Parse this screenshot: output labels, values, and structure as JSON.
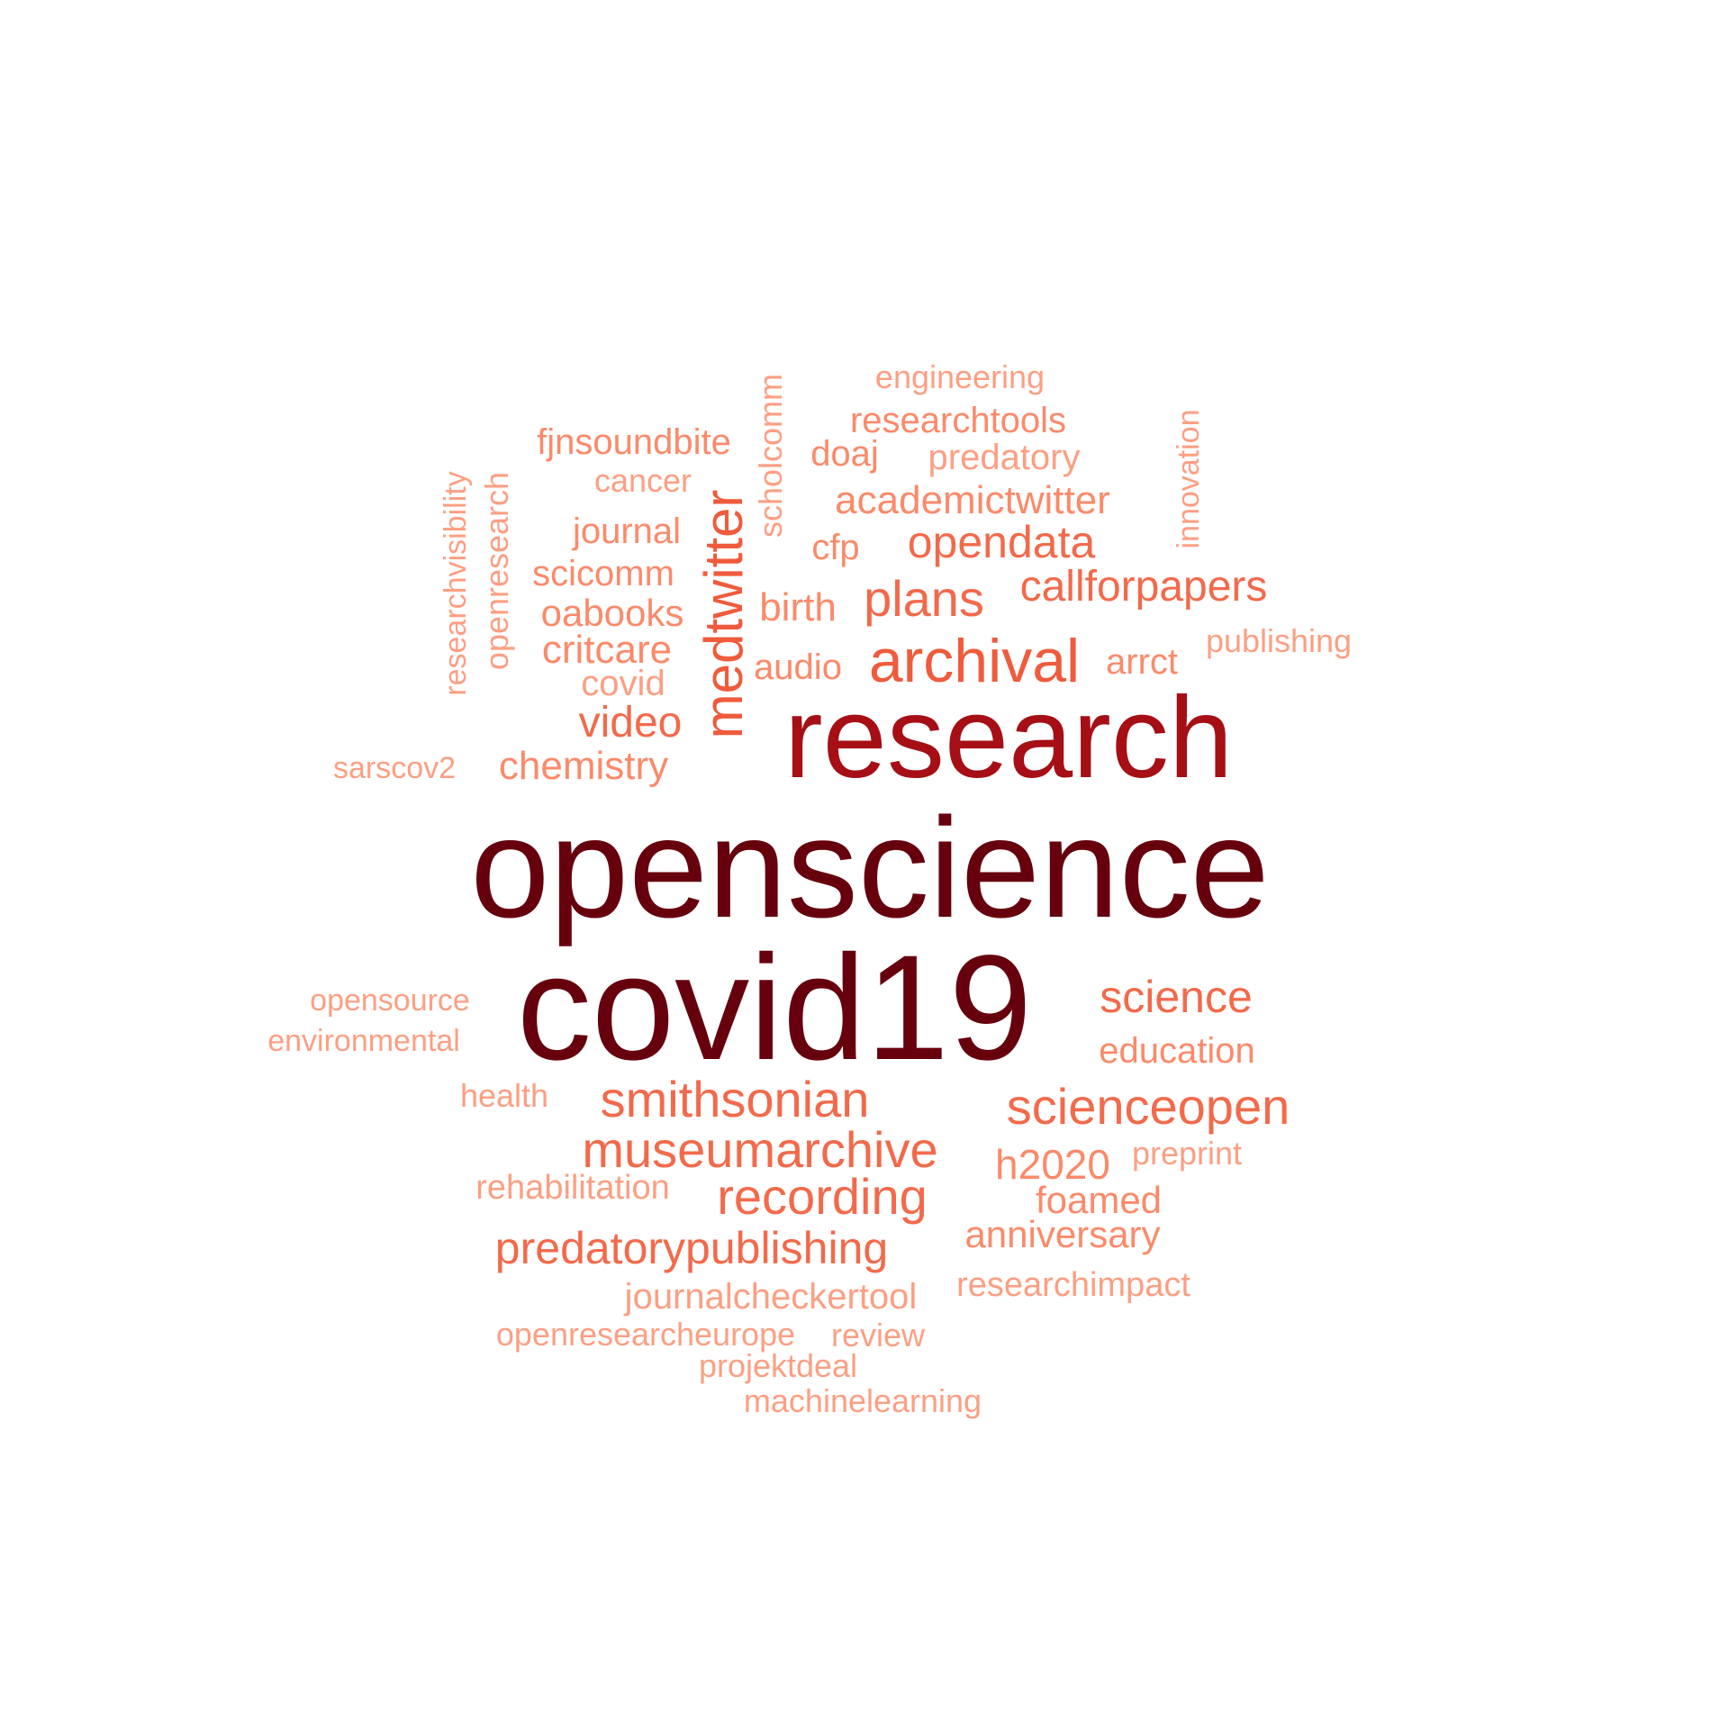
{
  "palette": {
    "largest": "#67000d",
    "large": "#a50f15",
    "medium": "#ef3b2c",
    "medium_light": "#f26a4b",
    "light": "#fb8a6a",
    "lightest": "#fc9f83"
  },
  "words": [
    {
      "text": "openscience",
      "color": "#67000d"
    },
    {
      "text": "covid19",
      "color": "#67000d"
    },
    {
      "text": "research",
      "color": "#a50f15"
    },
    {
      "text": "archival",
      "color": "#ef5b3c"
    },
    {
      "text": "medtwitter",
      "color": "#ef5b3c"
    },
    {
      "text": "plans",
      "color": "#f26a4b"
    },
    {
      "text": "opendata",
      "color": "#f26a4b"
    },
    {
      "text": "callforpapers",
      "color": "#f26a4b"
    },
    {
      "text": "smithsonian",
      "color": "#f26a4b"
    },
    {
      "text": "museumarchive",
      "color": "#f26a4b"
    },
    {
      "text": "recording",
      "color": "#f26a4b"
    },
    {
      "text": "scienceopen",
      "color": "#f26a4b"
    },
    {
      "text": "science",
      "color": "#f26a4b"
    },
    {
      "text": "predatorypublishing",
      "color": "#f26a4b"
    },
    {
      "text": "video",
      "color": "#f26a4b"
    },
    {
      "text": "academictwitter",
      "color": "#fb8a6a"
    },
    {
      "text": "critcare",
      "color": "#fb8a6a"
    },
    {
      "text": "oabooks",
      "color": "#fb8a6a"
    },
    {
      "text": "chemistry",
      "color": "#fb8a6a"
    },
    {
      "text": "h2020",
      "color": "#fb8a6a"
    },
    {
      "text": "foamed",
      "color": "#fb8a6a"
    },
    {
      "text": "anniversary",
      "color": "#fb8a6a"
    },
    {
      "text": "education",
      "color": "#fb8a6a"
    },
    {
      "text": "birth",
      "color": "#fb8a6a"
    },
    {
      "text": "arrct",
      "color": "#fb8a6a"
    },
    {
      "text": "audio",
      "color": "#fb8a6a"
    },
    {
      "text": "journal",
      "color": "#fb8a6a"
    },
    {
      "text": "scicomm",
      "color": "#fb8a6a"
    },
    {
      "text": "covid",
      "color": "#fc9f83"
    },
    {
      "text": "fjnsoundbite",
      "color": "#fb8a6a"
    },
    {
      "text": "researchtools",
      "color": "#fb8a6a"
    },
    {
      "text": "predatory",
      "color": "#fc9f83"
    },
    {
      "text": "doaj",
      "color": "#fb8a6a"
    },
    {
      "text": "cfp",
      "color": "#fb8a6a"
    },
    {
      "text": "cancer",
      "color": "#fc9f83"
    },
    {
      "text": "engineering",
      "color": "#fc9f83"
    },
    {
      "text": "scholcomm",
      "color": "#fc9f83"
    },
    {
      "text": "openresearch",
      "color": "#fc9f83"
    },
    {
      "text": "researchvisibility",
      "color": "#fc9f83"
    },
    {
      "text": "innovation",
      "color": "#fc9f83"
    },
    {
      "text": "publishing",
      "color": "#fc9f83"
    },
    {
      "text": "sarscov2",
      "color": "#fc9f83"
    },
    {
      "text": "opensource",
      "color": "#fc9f83"
    },
    {
      "text": "environmental",
      "color": "#fc9f83"
    },
    {
      "text": "health",
      "color": "#fc9f83"
    },
    {
      "text": "rehabilitation",
      "color": "#fc9f83"
    },
    {
      "text": "preprint",
      "color": "#fc9f83"
    },
    {
      "text": "researchimpact",
      "color": "#fc9f83"
    },
    {
      "text": "journalcheckertool",
      "color": "#fc9f83"
    },
    {
      "text": "openresearcheurope",
      "color": "#fc9f83"
    },
    {
      "text": "review",
      "color": "#fc9f83"
    },
    {
      "text": "projektdeal",
      "color": "#fc9f83"
    },
    {
      "text": "machinelearning",
      "color": "#fc9f83"
    }
  ]
}
